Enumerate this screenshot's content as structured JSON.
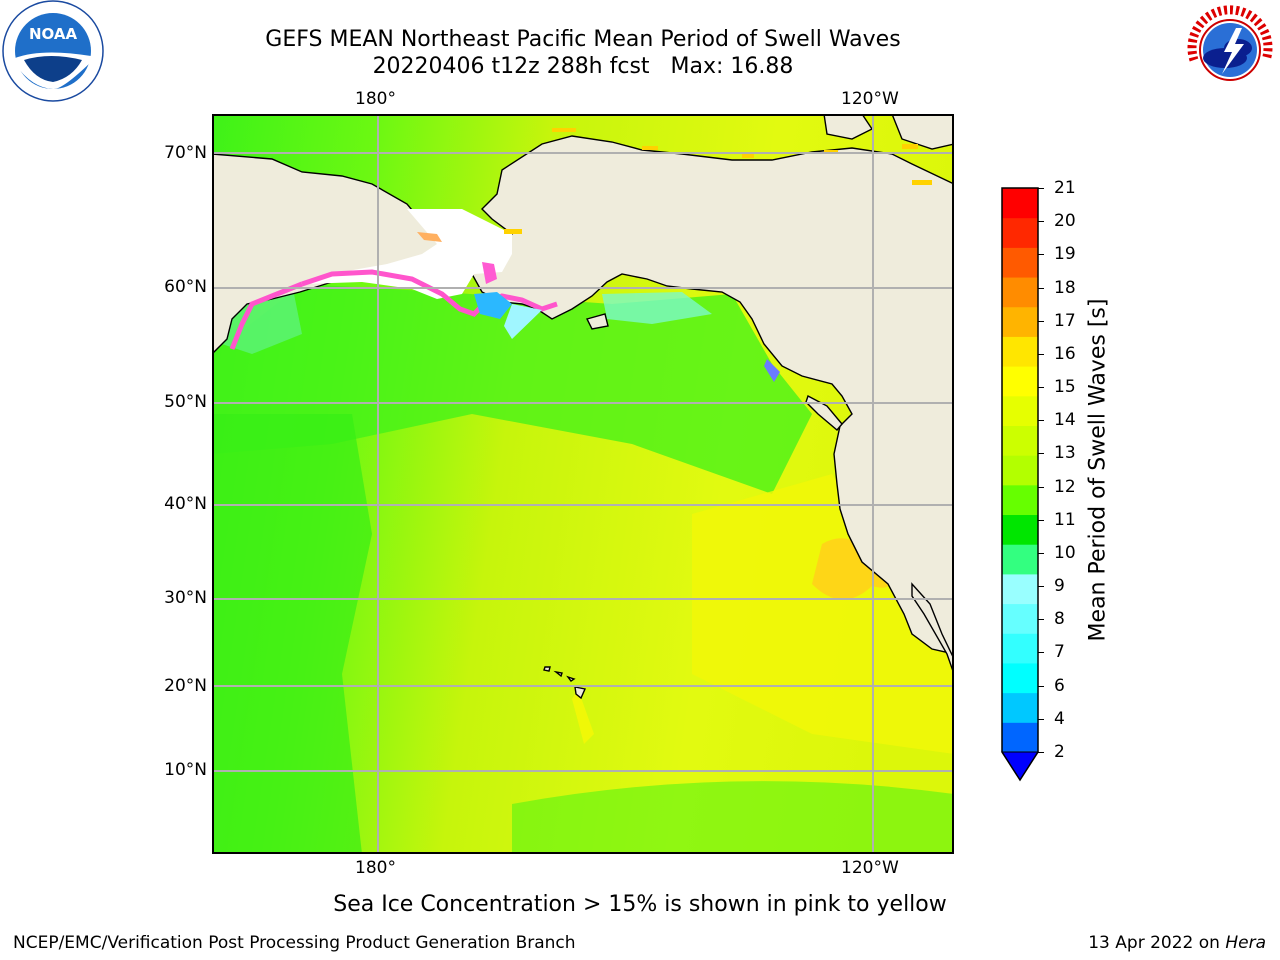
{
  "title": {
    "line1": "GEFS MEAN Northeast Pacific Mean Period of Swell Waves",
    "line2_date": "20220406 t12z 288h fcst",
    "line2_max": "Max: 16.88"
  },
  "map": {
    "lon_labels": [
      "180°",
      "120°W"
    ],
    "lat_labels": [
      "70°N",
      "60°N",
      "50°N",
      "40°N",
      "30°N",
      "20°N",
      "10°N"
    ],
    "land_color": "#efecdc",
    "coast_color": "#000000",
    "grid_color": "#b0b0b0"
  },
  "colorbar": {
    "label": "Mean Period of Swell Waves [s]",
    "ticks": [
      "2",
      "4",
      "6",
      "7",
      "8",
      "9",
      "10",
      "11",
      "12",
      "13",
      "14",
      "15",
      "16",
      "17",
      "18",
      "19",
      "20",
      "21"
    ],
    "colors": [
      "#0066ff",
      "#00c8ff",
      "#00ffff",
      "#33ffff",
      "#66ffff",
      "#99ffff",
      "#33ff80",
      "#00e600",
      "#66ff00",
      "#b3ff00",
      "#ccff00",
      "#e6ff00",
      "#ffff00",
      "#ffe600",
      "#ffb400",
      "#ff8c00",
      "#ff5a00",
      "#ff2800",
      "#ff0000"
    ],
    "under_color": "#0000ff"
  },
  "note": "Sea Ice Concentration > 15% is shown in pink to yellow",
  "footer": {
    "left": "NCEP/EMC/Verification Post Processing Product Generation Branch",
    "date": "13 Apr 2022 on ",
    "machine": "Hera"
  },
  "logos": {
    "noaa": "NOAA",
    "nws": "NATIONAL WEATHER SERVICE"
  }
}
